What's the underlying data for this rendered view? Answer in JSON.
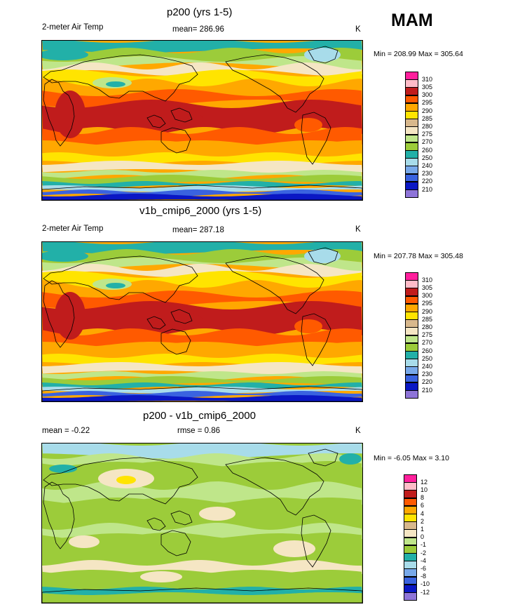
{
  "season": "MAM",
  "units": "K",
  "panels": [
    {
      "title": "p200 (yrs 1-5)",
      "left_label": "2-meter Air Temp",
      "center_label": "mean= 286.96",
      "right_label": "K",
      "minmax": "Min = 208.99 Max = 305.64"
    },
    {
      "title": "v1b_cmip6_2000 (yrs 1-5)",
      "left_label": "2-meter Air Temp",
      "center_label": "mean= 287.18",
      "right_label": "K",
      "minmax": "Min = 207.78 Max = 305.48"
    },
    {
      "title": "p200 - v1b_cmip6_2000",
      "left_label": "mean =  -0.22",
      "center_label": "rmse =   0.86",
      "right_label": "K",
      "minmax": "Min =  -6.05 Max =   3.10"
    }
  ],
  "chart_data": [
    {
      "type": "heatmap",
      "title": "p200 (yrs 1-5)",
      "variable": "2-meter Air Temp",
      "units": "K",
      "mean": 286.96,
      "min": 208.99,
      "max": 305.64,
      "levels": [
        210,
        220,
        230,
        240,
        250,
        260,
        270,
        275,
        280,
        285,
        290,
        295,
        300,
        305,
        310
      ],
      "colors": [
        "#8e74d8",
        "#0a17c4",
        "#3a63e0",
        "#78a9ea",
        "#a8dcea",
        "#22b0a8",
        "#9ccc3a",
        "#bfe68a",
        "#f5e6c4",
        "#d8b88c",
        "#ffe400",
        "#ffa800",
        "#ff5a00",
        "#c01c1c",
        "#ffbcc8",
        "#ff1f9c"
      ]
    },
    {
      "type": "heatmap",
      "title": "v1b_cmip6_2000 (yrs 1-5)",
      "variable": "2-meter Air Temp",
      "units": "K",
      "mean": 287.18,
      "min": 207.78,
      "max": 305.48,
      "levels": [
        210,
        220,
        230,
        240,
        250,
        260,
        270,
        275,
        280,
        285,
        290,
        295,
        300,
        305,
        310
      ],
      "colors": [
        "#8e74d8",
        "#0a17c4",
        "#3a63e0",
        "#78a9ea",
        "#a8dcea",
        "#22b0a8",
        "#9ccc3a",
        "#bfe68a",
        "#f5e6c4",
        "#d8b88c",
        "#ffe400",
        "#ffa800",
        "#ff5a00",
        "#c01c1c",
        "#ffbcc8",
        "#ff1f9c"
      ]
    },
    {
      "type": "heatmap",
      "title": "p200 - v1b_cmip6_2000",
      "units": "K",
      "mean": -0.22,
      "rmse": 0.86,
      "min": -6.05,
      "max": 3.1,
      "levels": [
        -12,
        -10,
        -8,
        -6,
        -4,
        -2,
        -1,
        0,
        1,
        2,
        4,
        6,
        8,
        10,
        12
      ],
      "colors": [
        "#8e74d8",
        "#0a17c4",
        "#3a63e0",
        "#78a9ea",
        "#a8dcea",
        "#22b0a8",
        "#9ccc3a",
        "#bfe68a",
        "#f5e6c4",
        "#d8b88c",
        "#ffe400",
        "#ffa800",
        "#ff5a00",
        "#c01c1c",
        "#ffbcc8",
        "#ff1f9c"
      ]
    }
  ]
}
